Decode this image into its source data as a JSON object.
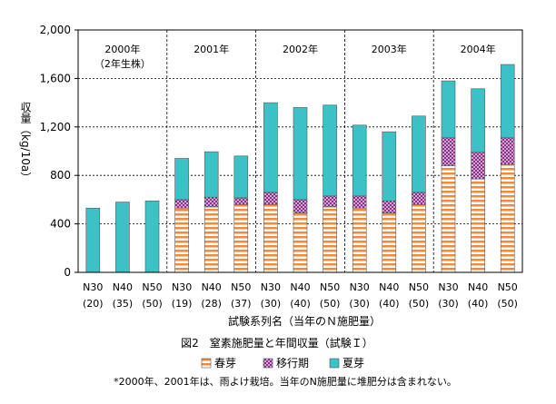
{
  "chart_data": {
    "type": "bar",
    "stacked": true,
    "ylabel": "収量（kg/10a）",
    "xlabel": "試験系列名（当年のＮ施肥量）",
    "caption": "図2　窒素施肥量と年間収量（試験Ｉ）",
    "footnote": "*2000年、2001年は、雨よけ栽培。当年のN施肥量に堆肥分は含まれない。",
    "ylim": [
      0,
      2000
    ],
    "yticks": [
      "0",
      "400",
      "800",
      "1,200",
      "1,600",
      "2,000"
    ],
    "grid": "horizontal-dotted",
    "legend_position": "bottom",
    "groups": [
      {
        "label_line1": "2000年",
        "label_line2": "（2年生株）",
        "count": 3
      },
      {
        "label_line1": "2001年",
        "label_line2": "",
        "count": 3
      },
      {
        "label_line1": "2002年",
        "label_line2": "",
        "count": 3
      },
      {
        "label_line1": "2003年",
        "label_line2": "",
        "count": 3
      },
      {
        "label_line1": "2004年",
        "label_line2": "",
        "count": 3
      }
    ],
    "categories": [
      {
        "top": "N30",
        "bottom": "(20)"
      },
      {
        "top": "N40",
        "bottom": "(35)"
      },
      {
        "top": "N50",
        "bottom": "(50)"
      },
      {
        "top": "N30",
        "bottom": "(19)"
      },
      {
        "top": "N40",
        "bottom": "(28)"
      },
      {
        "top": "N50",
        "bottom": "(37)"
      },
      {
        "top": "N30",
        "bottom": "(30)"
      },
      {
        "top": "N40",
        "bottom": "(40)"
      },
      {
        "top": "N50",
        "bottom": "(50)"
      },
      {
        "top": "N30",
        "bottom": "(30)"
      },
      {
        "top": "N40",
        "bottom": "(40)"
      },
      {
        "top": "N50",
        "bottom": "(50)"
      },
      {
        "top": "N30",
        "bottom": "(30)"
      },
      {
        "top": "N40",
        "bottom": "(40)"
      },
      {
        "top": "N50",
        "bottom": "(50)"
      }
    ],
    "series": [
      {
        "name": "春芽",
        "color": "#f28a3a",
        "pattern": "horizontal-stripes",
        "values": [
          0,
          0,
          0,
          530,
          540,
          560,
          560,
          490,
          540,
          530,
          490,
          560,
          880,
          770,
          890
        ]
      },
      {
        "name": "移行期",
        "color": "#a02090",
        "pattern": "crosshatch",
        "values": [
          0,
          0,
          0,
          70,
          80,
          55,
          100,
          110,
          90,
          100,
          100,
          100,
          230,
          220,
          220
        ]
      },
      {
        "name": "夏芽",
        "color": "#3cc2c6",
        "pattern": "solid",
        "values": [
          530,
          580,
          590,
          340,
          375,
          345,
          740,
          760,
          750,
          585,
          570,
          630,
          470,
          525,
          605
        ]
      }
    ]
  }
}
